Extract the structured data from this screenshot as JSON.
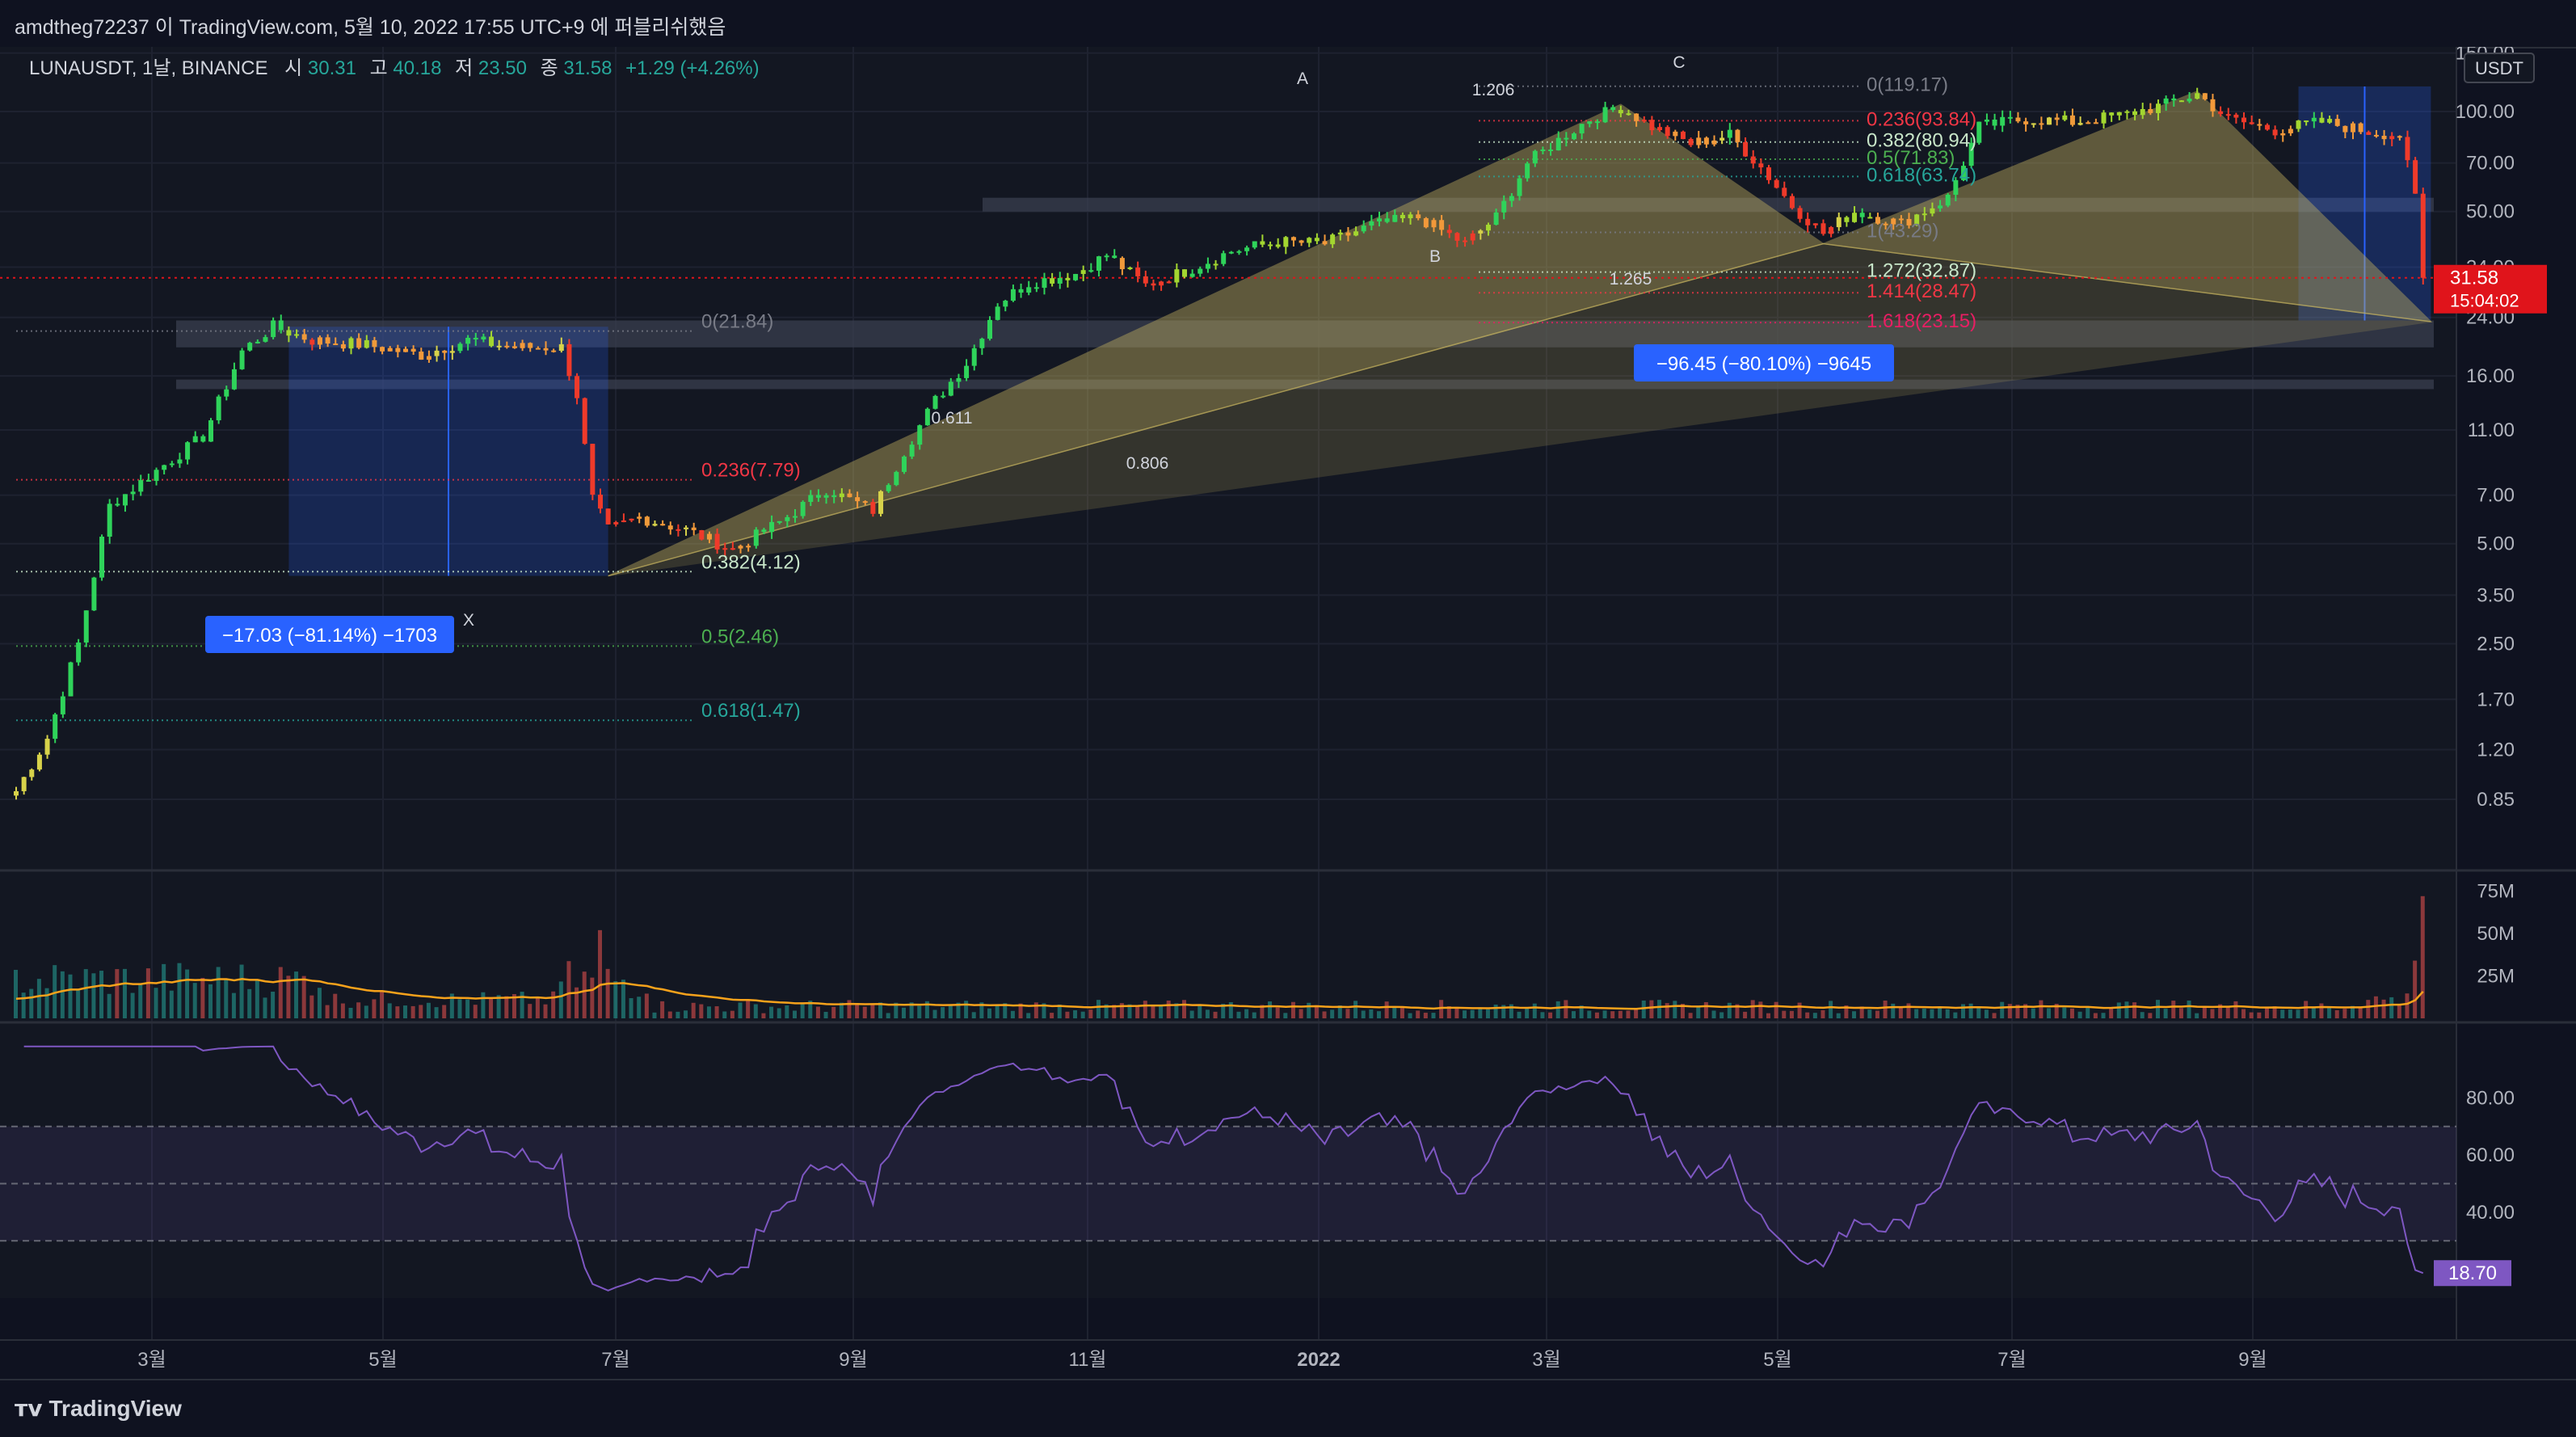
{
  "header": {
    "publish_line": "amdtheg72237 이 TradingView.com, 5월 10, 2022 17:55 UTC+9 에 퍼블리쉬했음"
  },
  "legend": {
    "symbol": "LUNAUSDT, 1날, BINANCE",
    "o_label": "시",
    "o_value": "30.31",
    "h_label": "고",
    "h_value": "40.18",
    "l_label": "저",
    "l_value": "23.50",
    "c_label": "종",
    "c_value": "31.58",
    "change": "+1.29 (+4.26%)"
  },
  "currency": "USDT",
  "brand": "TradingView",
  "colors": {
    "background": "#0f1220",
    "grid": "#1e2230",
    "up": "#26a69a",
    "down": "#ef5350",
    "price_tag": "#e0141b",
    "rsi": "#7e57c2",
    "volume_ma": "#f7a21b",
    "measure": "#2962ff"
  },
  "chart_data": [
    {
      "type": "candlestick",
      "scale": "log",
      "price_ticks": [
        "150.00",
        "100.00",
        "70.00",
        "50.00",
        "34.00",
        "24.00",
        "16.00",
        "11.00",
        "7.00",
        "5.00",
        "3.50",
        "2.50",
        "1.70",
        "1.20",
        "0.85"
      ],
      "time_ticks": [
        "3월",
        "5월",
        "7월",
        "9월",
        "11월",
        "2022",
        "3월",
        "5월",
        "7월",
        "9월"
      ],
      "last_price": "31.58",
      "countdown": "15:04:02",
      "path_points": [
        {
          "t": 0,
          "p": 0.9
        },
        {
          "t": 4,
          "p": 1.3
        },
        {
          "t": 8,
          "p": 2.5
        },
        {
          "t": 12,
          "p": 6.5
        },
        {
          "t": 18,
          "p": 8.3
        },
        {
          "t": 24,
          "p": 10.5
        },
        {
          "t": 29,
          "p": 19
        },
        {
          "t": 33,
          "p": 22.5
        },
        {
          "t": 38,
          "p": 20.5
        },
        {
          "t": 45,
          "p": 19.8
        },
        {
          "t": 52,
          "p": 18.5
        },
        {
          "t": 58,
          "p": 20.5
        },
        {
          "t": 64,
          "p": 19.5
        },
        {
          "t": 70,
          "p": 19.5
        },
        {
          "t": 72,
          "p": 14
        },
        {
          "t": 74,
          "p": 6.8
        },
        {
          "t": 76,
          "p": 5.5
        },
        {
          "t": 80,
          "p": 6.0
        },
        {
          "t": 86,
          "p": 5.5
        },
        {
          "t": 92,
          "p": 4.8
        },
        {
          "t": 98,
          "p": 5.8
        },
        {
          "t": 104,
          "p": 7.3
        },
        {
          "t": 110,
          "p": 6.3
        },
        {
          "t": 114,
          "p": 9.5
        },
        {
          "t": 118,
          "p": 13.5
        },
        {
          "t": 122,
          "p": 17.5
        },
        {
          "t": 126,
          "p": 26.5
        },
        {
          "t": 130,
          "p": 30.5
        },
        {
          "t": 136,
          "p": 32.5
        },
        {
          "t": 140,
          "p": 37
        },
        {
          "t": 145,
          "p": 30
        },
        {
          "t": 150,
          "p": 33
        },
        {
          "t": 156,
          "p": 38
        },
        {
          "t": 162,
          "p": 40.5
        },
        {
          "t": 168,
          "p": 40
        },
        {
          "t": 174,
          "p": 45.5
        },
        {
          "t": 180,
          "p": 48
        },
        {
          "t": 186,
          "p": 40
        },
        {
          "t": 190,
          "p": 48
        },
        {
          "t": 194,
          "p": 70
        },
        {
          "t": 198,
          "p": 82
        },
        {
          "t": 202,
          "p": 95
        },
        {
          "t": 206,
          "p": 103
        },
        {
          "t": 210,
          "p": 90
        },
        {
          "t": 215,
          "p": 80
        },
        {
          "t": 220,
          "p": 85
        },
        {
          "t": 224,
          "p": 68
        },
        {
          "t": 228,
          "p": 52
        },
        {
          "t": 232,
          "p": 43
        },
        {
          "t": 236,
          "p": 50
        },
        {
          "t": 242,
          "p": 46
        },
        {
          "t": 248,
          "p": 55
        },
        {
          "t": 252,
          "p": 90
        },
        {
          "t": 258,
          "p": 95
        },
        {
          "t": 264,
          "p": 93
        },
        {
          "t": 270,
          "p": 97
        },
        {
          "t": 276,
          "p": 105
        },
        {
          "t": 280,
          "p": 113
        },
        {
          "t": 284,
          "p": 95
        },
        {
          "t": 290,
          "p": 88
        },
        {
          "t": 296,
          "p": 93
        },
        {
          "t": 302,
          "p": 87
        },
        {
          "t": 306,
          "p": 85
        },
        {
          "t": 308,
          "p": 55
        },
        {
          "t": 309,
          "p": 31.58
        }
      ],
      "volume_ticks": [
        "75M",
        "50M",
        "25M"
      ],
      "rsi_ticks": [
        "80.00",
        "60.00",
        "40.00"
      ],
      "rsi_last": "18.70",
      "rsi_bands": {
        "upper": 70,
        "mid": 50,
        "lower": 30
      }
    }
  ],
  "annotations": {
    "fib_left": [
      {
        "label": "0(21.84)",
        "price": 21.84,
        "color": "#787b86"
      },
      {
        "label": "0.236(7.79)",
        "price": 7.79,
        "color": "#f23645"
      },
      {
        "label": "0.382(4.12)",
        "price": 4.12,
        "color": "#c8e6c9"
      },
      {
        "label": "0.5(2.46)",
        "price": 2.46,
        "color": "#4caf50"
      },
      {
        "label": "0.618(1.47)",
        "price": 1.47,
        "color": "#26a69a"
      }
    ],
    "fib_right": [
      {
        "label": "0(119.17)",
        "price": 119.17,
        "color": "#787b86"
      },
      {
        "label": "0.236(93.84)",
        "price": 93.84,
        "color": "#f23645"
      },
      {
        "label": "0.382(80.94)",
        "price": 80.94,
        "color": "#c8e6c9"
      },
      {
        "label": "0.5(71.83)",
        "price": 71.83,
        "color": "#4caf50"
      },
      {
        "label": "0.618(63.74)",
        "price": 63.74,
        "color": "#26a69a"
      },
      {
        "label": "1(43.29)",
        "price": 43.29,
        "color": "#787b86"
      },
      {
        "label": "1.272(32.87)",
        "price": 32.87,
        "color": "#c8e6c9"
      },
      {
        "label": "1.414(28.47)",
        "price": 28.47,
        "color": "#f23645"
      },
      {
        "label": "1.618(23.15)",
        "price": 23.15,
        "color": "#e91e63"
      }
    ],
    "pattern_points": {
      "X": "X",
      "A": "A",
      "B": "B",
      "C": "C"
    },
    "ratios": {
      "xb": "0.611",
      "xd": "0.806",
      "ab": "1.206",
      "bc": "1.265"
    },
    "measure_left": "−17.03 (−81.14%) −1703",
    "measure_right": "−96.45 (−80.10%) −9645"
  }
}
